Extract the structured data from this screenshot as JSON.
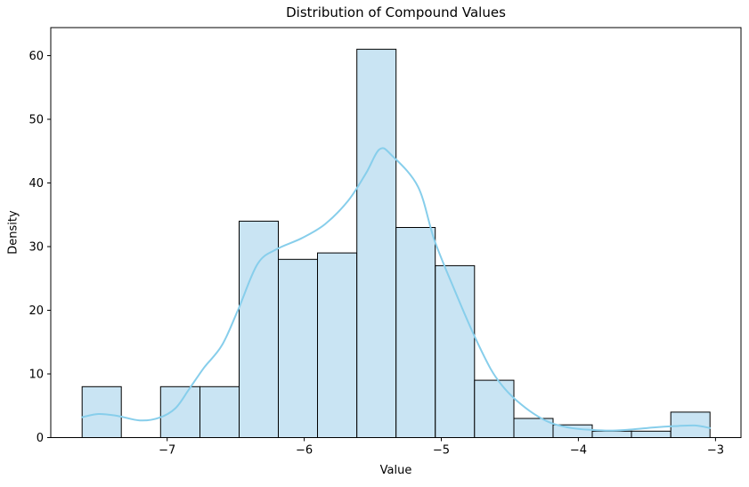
{
  "chart_data": {
    "type": "bar",
    "subtype": "histogram-with-kde",
    "title": "Distribution of Compound Values",
    "xlabel": "Value",
    "ylabel": "Density",
    "grid": false,
    "legend": null,
    "bar_fill": "#c9e4f3",
    "bar_edge": "#000000",
    "kde_color": "#87ceeb",
    "xlim": [
      -7.849,
      -2.814
    ],
    "ylim": [
      0,
      64.4
    ],
    "xtick_values": [
      -7,
      -6,
      -5,
      -4,
      -3
    ],
    "xtick_labels": [
      "−7",
      "−6",
      "−5",
      "−4",
      "−3"
    ],
    "ytick_values": [
      0,
      10,
      20,
      30,
      40,
      50,
      60
    ],
    "ytick_labels": [
      "0",
      "10",
      "20",
      "30",
      "40",
      "50",
      "60"
    ],
    "bin_edges": [
      -7.62,
      -7.334,
      -7.048,
      -6.761,
      -6.475,
      -6.189,
      -5.903,
      -5.616,
      -5.33,
      -5.044,
      -4.758,
      -4.471,
      -4.185,
      -3.899,
      -3.613,
      -3.326,
      -3.04
    ],
    "counts": [
      8,
      0,
      8,
      8,
      34,
      28,
      29,
      61,
      33,
      27,
      9,
      3,
      2,
      1,
      1,
      4
    ],
    "kde": [
      [
        -7.62,
        3.2
      ],
      [
        -7.5,
        3.7
      ],
      [
        -7.36,
        3.4
      ],
      [
        -7.2,
        2.7
      ],
      [
        -7.06,
        3.1
      ],
      [
        -6.94,
        4.6
      ],
      [
        -6.84,
        7.6
      ],
      [
        -6.73,
        11.0
      ],
      [
        -6.6,
        14.5
      ],
      [
        -6.48,
        20.2
      ],
      [
        -6.34,
        27.3
      ],
      [
        -6.2,
        29.6
      ],
      [
        -6.02,
        31.3
      ],
      [
        -5.85,
        33.5
      ],
      [
        -5.68,
        37.2
      ],
      [
        -5.55,
        41.5
      ],
      [
        -5.45,
        45.3
      ],
      [
        -5.36,
        44.3
      ],
      [
        -5.17,
        39.4
      ],
      [
        -5.05,
        31.0
      ],
      [
        -4.9,
        23.0
      ],
      [
        -4.77,
        16.5
      ],
      [
        -4.64,
        10.8
      ],
      [
        -4.55,
        8.0
      ],
      [
        -4.46,
        6.0
      ],
      [
        -4.33,
        3.8
      ],
      [
        -4.2,
        2.3
      ],
      [
        -4.05,
        1.5
      ],
      [
        -3.9,
        1.2
      ],
      [
        -3.75,
        1.1
      ],
      [
        -3.6,
        1.3
      ],
      [
        -3.45,
        1.6
      ],
      [
        -3.3,
        1.8
      ],
      [
        -3.15,
        1.9
      ],
      [
        -3.04,
        1.5
      ]
    ]
  }
}
